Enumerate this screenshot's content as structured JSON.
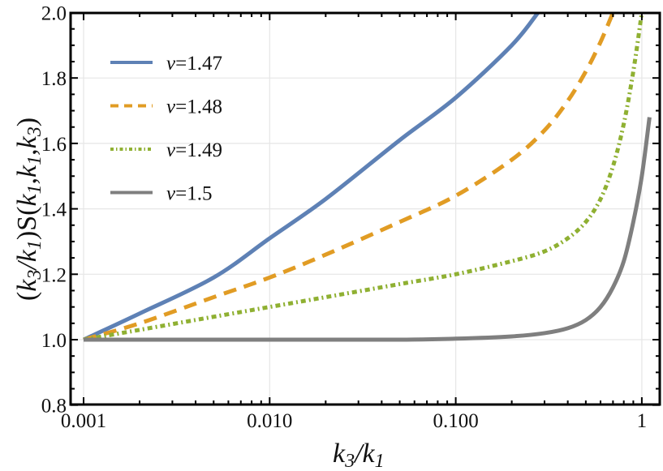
{
  "chart_data": {
    "type": "line",
    "title": "",
    "xlabel": "k3/k1",
    "ylabel": "(k3/k1)S(k1,k1,k3)",
    "xscale": "log",
    "xlim": [
      0.00093,
      1.2
    ],
    "ylim": [
      0.8,
      2.0
    ],
    "grid": true,
    "legend_position": "upper left (inside)",
    "x_ticks": [
      {
        "value": 0.001,
        "label": "0.001"
      },
      {
        "value": 0.01,
        "label": "0.010"
      },
      {
        "value": 0.1,
        "label": "0.100"
      },
      {
        "value": 1,
        "label": "1"
      }
    ],
    "y_ticks": [
      {
        "value": 0.8,
        "label": "0.8"
      },
      {
        "value": 1.0,
        "label": "1.0"
      },
      {
        "value": 1.2,
        "label": "1.2"
      },
      {
        "value": 1.4,
        "label": "1.4"
      },
      {
        "value": 1.6,
        "label": "1.6"
      },
      {
        "value": 1.8,
        "label": "1.8"
      },
      {
        "value": 2.0,
        "label": "2.0"
      }
    ],
    "series": [
      {
        "name": "ν=1.47",
        "color": "#5e81b5",
        "style": "solid",
        "x": [
          0.001,
          0.002,
          0.005,
          0.01,
          0.02,
          0.05,
          0.1,
          0.2,
          0.277
        ],
        "y": [
          1.0,
          1.08,
          1.19,
          1.31,
          1.43,
          1.61,
          1.74,
          1.9,
          2.0
        ]
      },
      {
        "name": "ν=1.48",
        "color": "#e19c24",
        "style": "dashed",
        "x": [
          0.001,
          0.002,
          0.005,
          0.01,
          0.02,
          0.05,
          0.1,
          0.2,
          0.3,
          0.4,
          0.5,
          0.6,
          0.7
        ],
        "y": [
          1.0,
          1.05,
          1.13,
          1.19,
          1.26,
          1.36,
          1.44,
          1.55,
          1.64,
          1.73,
          1.82,
          1.91,
          2.0
        ]
      },
      {
        "name": "ν=1.49",
        "color": "#8fb032",
        "style": "dot-dashed",
        "x": [
          0.001,
          0.002,
          0.005,
          0.01,
          0.02,
          0.05,
          0.1,
          0.2,
          0.3,
          0.4,
          0.5,
          0.6,
          0.7,
          0.8,
          0.9,
          1.0
        ],
        "y": [
          1.0,
          1.03,
          1.07,
          1.1,
          1.13,
          1.17,
          1.2,
          1.24,
          1.27,
          1.31,
          1.36,
          1.43,
          1.53,
          1.66,
          1.82,
          2.0
        ]
      },
      {
        "name": "ν=1.5",
        "color": "#7f7f7f",
        "style": "solid",
        "x": [
          0.001,
          0.01,
          0.05,
          0.1,
          0.2,
          0.3,
          0.4,
          0.5,
          0.6,
          0.7,
          0.8,
          0.9,
          1.0,
          1.1
        ],
        "y": [
          1.0,
          1.0,
          1.0,
          1.003,
          1.01,
          1.02,
          1.035,
          1.06,
          1.1,
          1.16,
          1.24,
          1.36,
          1.5,
          1.68
        ]
      }
    ]
  },
  "legend": [
    {
      "label": "ν=1.47"
    },
    {
      "label": "ν=1.48"
    },
    {
      "label": "ν=1.49"
    },
    {
      "label": "ν=1.5"
    }
  ],
  "axes": {
    "xlabel_main": "k",
    "xlabel_sub1": "3",
    "xlabel_slash": "/k",
    "xlabel_sub2": "1",
    "ylabel_text": "(k3/k1)S(k1,k1,k3)"
  }
}
